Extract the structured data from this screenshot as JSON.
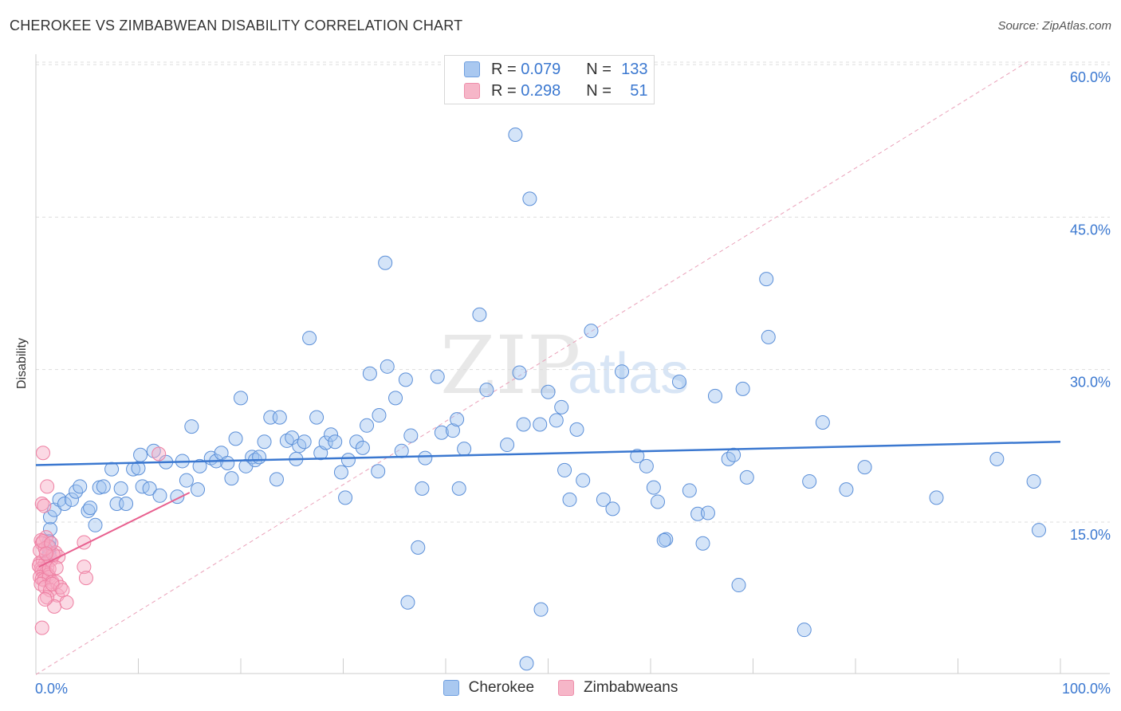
{
  "title": "CHEROKEE VS ZIMBABWEAN DISABILITY CORRELATION CHART",
  "source": "Source: ZipAtlas.com",
  "watermark": {
    "zip": "ZIP",
    "atlas": "atlas"
  },
  "legend": {
    "rows": [
      {
        "name": "Cherokee",
        "r_label": "R =",
        "r_value": "0.079",
        "n_label": "N =",
        "n_value": "133",
        "color": "#a9c8f0",
        "stroke": "#6f9fdf"
      },
      {
        "name": "Zimbabweans",
        "r_label": "R =",
        "r_value": "0.298",
        "n_label": "N =",
        "n_value": "51",
        "color": "#f6b6c8",
        "stroke": "#ee8fab"
      }
    ]
  },
  "colors": {
    "blue": "#3b78d0",
    "blue_fill": "rgba(160,196,240,0.45)",
    "blue_stroke": "#5b8fd8",
    "pink": "#e8608f",
    "pink_fill": "rgba(246,170,195,0.45)",
    "pink_stroke": "#ee7fa2",
    "grid": "#dddddd"
  },
  "chart_data": {
    "type": "scatter",
    "title": "CHEROKEE VS ZIMBABWEAN DISABILITY CORRELATION CHART",
    "xlabel": "",
    "ylabel": "Disability",
    "xlim": [
      0,
      100
    ],
    "ylim": [
      0,
      63
    ],
    "x_tick_labels": [
      "0.0%",
      "100.0%"
    ],
    "y_ticks": [
      15,
      30,
      45,
      60
    ],
    "y_tick_labels": [
      "15.0%",
      "30.0%",
      "45.0%",
      "60.0%"
    ],
    "series": [
      {
        "name": "Cherokee",
        "r": 0.079,
        "n": 133,
        "trend": {
          "x": [
            0,
            100
          ],
          "y": [
            20.6,
            22.9
          ]
        },
        "points": [
          [
            1.4,
            14.3
          ],
          [
            1.3,
            13.1
          ],
          [
            1.3,
            12.6
          ],
          [
            1.3,
            12.0
          ],
          [
            1.3,
            11.7
          ],
          [
            1.4,
            15.5
          ],
          [
            1.8,
            16.2
          ],
          [
            2.3,
            17.2
          ],
          [
            2.8,
            16.8
          ],
          [
            3.5,
            17.2
          ],
          [
            3.9,
            18.0
          ],
          [
            4.3,
            18.5
          ],
          [
            5.1,
            16.1
          ],
          [
            5.3,
            16.4
          ],
          [
            5.8,
            14.7
          ],
          [
            6.2,
            18.4
          ],
          [
            6.6,
            18.5
          ],
          [
            7.4,
            20.2
          ],
          [
            7.9,
            16.8
          ],
          [
            8.3,
            18.3
          ],
          [
            8.8,
            16.8
          ],
          [
            9.5,
            20.2
          ],
          [
            10.0,
            20.3
          ],
          [
            10.2,
            21.6
          ],
          [
            10.4,
            18.5
          ],
          [
            11.1,
            18.3
          ],
          [
            11.5,
            22.0
          ],
          [
            12.1,
            17.6
          ],
          [
            12.7,
            20.9
          ],
          [
            13.8,
            17.5
          ],
          [
            14.3,
            21.0
          ],
          [
            14.7,
            19.1
          ],
          [
            15.2,
            24.4
          ],
          [
            15.8,
            18.2
          ],
          [
            16.0,
            20.5
          ],
          [
            17.1,
            21.3
          ],
          [
            17.6,
            21.0
          ],
          [
            18.1,
            21.8
          ],
          [
            18.7,
            20.8
          ],
          [
            19.1,
            19.3
          ],
          [
            19.5,
            23.2
          ],
          [
            20.0,
            27.2
          ],
          [
            20.5,
            20.5
          ],
          [
            21.1,
            21.4
          ],
          [
            21.4,
            21.1
          ],
          [
            21.8,
            21.4
          ],
          [
            22.3,
            22.9
          ],
          [
            22.9,
            25.3
          ],
          [
            23.5,
            19.2
          ],
          [
            23.8,
            25.3
          ],
          [
            24.5,
            23.0
          ],
          [
            25.0,
            23.3
          ],
          [
            25.4,
            21.2
          ],
          [
            25.7,
            22.5
          ],
          [
            26.2,
            22.9
          ],
          [
            26.7,
            33.1
          ],
          [
            27.4,
            25.3
          ],
          [
            27.8,
            21.8
          ],
          [
            28.3,
            22.8
          ],
          [
            28.8,
            23.6
          ],
          [
            29.2,
            22.9
          ],
          [
            29.8,
            19.9
          ],
          [
            30.2,
            17.4
          ],
          [
            30.5,
            21.1
          ],
          [
            31.3,
            22.9
          ],
          [
            31.9,
            22.3
          ],
          [
            32.3,
            24.5
          ],
          [
            32.6,
            29.6
          ],
          [
            33.4,
            20.0
          ],
          [
            33.5,
            25.5
          ],
          [
            34.1,
            40.5
          ],
          [
            34.3,
            30.3
          ],
          [
            35.1,
            27.2
          ],
          [
            35.7,
            22.0
          ],
          [
            36.1,
            29.0
          ],
          [
            36.6,
            23.5
          ],
          [
            37.3,
            12.5
          ],
          [
            37.7,
            18.3
          ],
          [
            38.0,
            21.3
          ],
          [
            39.2,
            29.3
          ],
          [
            39.6,
            23.8
          ],
          [
            40.7,
            24.0
          ],
          [
            41.1,
            25.1
          ],
          [
            41.3,
            18.3
          ],
          [
            41.8,
            22.2
          ],
          [
            43.3,
            35.4
          ],
          [
            44.0,
            28.0
          ],
          [
            46.0,
            22.6
          ],
          [
            46.8,
            53.1
          ],
          [
            47.2,
            29.7
          ],
          [
            47.6,
            24.6
          ],
          [
            48.2,
            46.8
          ],
          [
            49.2,
            24.6
          ],
          [
            50.0,
            27.8
          ],
          [
            50.8,
            25.0
          ],
          [
            51.3,
            26.3
          ],
          [
            51.6,
            20.1
          ],
          [
            52.1,
            17.2
          ],
          [
            52.8,
            24.1
          ],
          [
            53.4,
            19.1
          ],
          [
            54.2,
            33.8
          ],
          [
            55.4,
            17.2
          ],
          [
            56.3,
            16.3
          ],
          [
            57.2,
            29.8
          ],
          [
            58.7,
            21.5
          ],
          [
            59.6,
            20.5
          ],
          [
            60.3,
            18.4
          ],
          [
            60.7,
            17.0
          ],
          [
            61.5,
            13.3
          ],
          [
            62.8,
            28.8
          ],
          [
            63.8,
            18.1
          ],
          [
            64.6,
            15.8
          ],
          [
            65.1,
            12.9
          ],
          [
            65.6,
            15.9
          ],
          [
            66.3,
            27.4
          ],
          [
            67.6,
            21.2
          ],
          [
            68.1,
            21.6
          ],
          [
            68.6,
            8.8
          ],
          [
            69.0,
            28.1
          ],
          [
            69.4,
            19.4
          ],
          [
            71.3,
            38.9
          ],
          [
            71.5,
            33.2
          ],
          [
            75.5,
            19.0
          ],
          [
            76.8,
            24.8
          ],
          [
            79.1,
            18.2
          ],
          [
            80.9,
            20.4
          ],
          [
            87.9,
            17.4
          ],
          [
            93.8,
            21.2
          ],
          [
            97.4,
            19.0
          ],
          [
            97.9,
            14.2
          ],
          [
            49.3,
            6.4
          ],
          [
            36.3,
            7.1
          ],
          [
            47.9,
            1.1
          ],
          [
            75.0,
            4.4
          ],
          [
            61.3,
            13.2
          ]
        ]
      },
      {
        "name": "Zimbabweans",
        "r": 0.298,
        "n": 51,
        "trend": {
          "x": [
            0.3,
            15.0
          ],
          "y": [
            10.6,
            17.9
          ]
        },
        "points": [
          [
            0.7,
            21.8
          ],
          [
            1.1,
            18.5
          ],
          [
            0.6,
            16.8
          ],
          [
            0.8,
            16.6
          ],
          [
            1.0,
            13.5
          ],
          [
            0.5,
            13.2
          ],
          [
            0.6,
            12.9
          ],
          [
            1.2,
            12.6
          ],
          [
            1.5,
            11.3
          ],
          [
            0.4,
            11.0
          ],
          [
            0.7,
            11.2
          ],
          [
            0.9,
            10.9
          ],
          [
            1.1,
            10.6
          ],
          [
            0.5,
            10.4
          ],
          [
            0.6,
            10.2
          ],
          [
            0.8,
            10.1
          ],
          [
            1.0,
            10.0
          ],
          [
            1.2,
            9.8
          ],
          [
            0.3,
            10.7
          ],
          [
            0.4,
            9.6
          ],
          [
            0.6,
            9.4
          ],
          [
            0.8,
            9.3
          ],
          [
            1.3,
            9.6
          ],
          [
            1.6,
            9.1
          ],
          [
            2.0,
            9.1
          ],
          [
            0.5,
            8.9
          ],
          [
            0.9,
            8.6
          ],
          [
            1.4,
            8.3
          ],
          [
            2.1,
            7.8
          ],
          [
            2.4,
            8.6
          ],
          [
            1.1,
            7.6
          ],
          [
            1.8,
            6.7
          ],
          [
            3.0,
            7.1
          ],
          [
            0.6,
            4.6
          ],
          [
            0.4,
            12.2
          ],
          [
            1.9,
            12.0
          ],
          [
            2.2,
            11.6
          ],
          [
            1.7,
            11.8
          ],
          [
            4.7,
            10.6
          ],
          [
            4.7,
            13.0
          ],
          [
            4.9,
            9.5
          ],
          [
            12.0,
            21.7
          ],
          [
            0.9,
            12.4
          ],
          [
            1.3,
            10.4
          ],
          [
            0.7,
            13.1
          ],
          [
            1.5,
            12.9
          ],
          [
            2.0,
            10.5
          ],
          [
            0.9,
            7.4
          ],
          [
            1.6,
            8.9
          ],
          [
            2.6,
            8.3
          ],
          [
            1.0,
            11.9
          ]
        ]
      }
    ],
    "reference_line": {
      "style": "dashed",
      "x": [
        0,
        97
      ],
      "y": [
        0,
        60.4
      ]
    }
  }
}
